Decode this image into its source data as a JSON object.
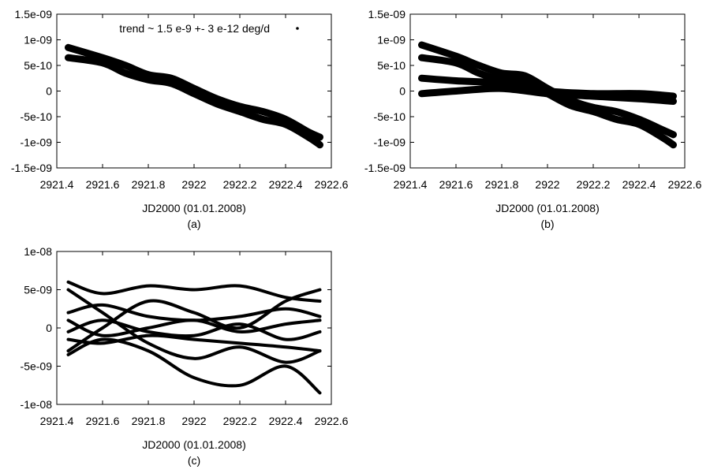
{
  "chart_data": [
    {
      "id": "a",
      "type": "line",
      "caption": "(a)",
      "xlabel": "JD2000 (01.01.2008)",
      "ylabel": "",
      "xlim": [
        2921.4,
        2922.6
      ],
      "ylim": [
        -1.5e-09,
        1.5e-09
      ],
      "xticks": [
        2921.4,
        2921.6,
        2921.8,
        2922,
        2922.2,
        2922.4,
        2922.6
      ],
      "xtick_labels": [
        "2921.4",
        "2921.6",
        "2921.8",
        "2922",
        "2922.2",
        "2922.4",
        "2922.6"
      ],
      "yticks": [
        1.5e-09,
        1e-09,
        5e-10,
        0,
        -5e-10,
        -1e-09,
        -1.5e-09
      ],
      "ytick_labels": [
        "1.5e-09",
        "1e-09",
        "5e-10",
        "0",
        "-5e-10",
        "-1e-09",
        "-1.5e-09"
      ],
      "legend": {
        "label": "trend ~ 1.5 e-9 +- 3 e-12 deg/d",
        "placement": "top"
      },
      "grid": false,
      "series": [
        {
          "color": "#000000",
          "x": [
            2921.45,
            2921.6,
            2921.7,
            2921.8,
            2921.9,
            2922.0,
            2922.1,
            2922.2,
            2922.3,
            2922.4,
            2922.5,
            2922.55
          ],
          "y": [
            8.5e-10,
            6.5e-10,
            5e-10,
            3.2e-10,
            2.5e-10,
            5e-11,
            -1.5e-10,
            -3e-10,
            -4e-10,
            -5.5e-10,
            -8e-10,
            -9e-10
          ]
        },
        {
          "color": "#000000",
          "x": [
            2921.45,
            2921.6,
            2921.7,
            2921.8,
            2921.9,
            2922.0,
            2922.1,
            2922.2,
            2922.3,
            2922.4,
            2922.5,
            2922.55
          ],
          "y": [
            6.5e-10,
            5.5e-10,
            3.5e-10,
            2.2e-10,
            1.5e-10,
            -5e-11,
            -2.5e-10,
            -4e-10,
            -5.5e-10,
            -6.5e-10,
            -9e-10,
            -1.05e-09
          ]
        }
      ]
    },
    {
      "id": "b",
      "type": "line",
      "caption": "(b)",
      "xlabel": "JD2000 (01.01.2008)",
      "ylabel": "",
      "xlim": [
        2921.4,
        2922.6
      ],
      "ylim": [
        -1.5e-09,
        1.5e-09
      ],
      "xticks": [
        2921.4,
        2921.6,
        2921.8,
        2922,
        2922.2,
        2922.4,
        2922.6
      ],
      "xtick_labels": [
        "2921.4",
        "2921.6",
        "2921.8",
        "2922",
        "2922.2",
        "2922.4",
        "2922.6"
      ],
      "yticks": [
        1.5e-09,
        1e-09,
        5e-10,
        0,
        -5e-10,
        -1e-09,
        -1.5e-09
      ],
      "ytick_labels": [
        "1.5e-09",
        "1e-09",
        "5e-10",
        "0",
        "-5e-10",
        "-1e-09",
        "-1.5e-09"
      ],
      "grid": false,
      "series": [
        {
          "color": "#000000",
          "x": [
            2921.45,
            2921.6,
            2921.7,
            2921.8,
            2921.9,
            2922.0,
            2922.1,
            2922.2,
            2922.3,
            2922.4,
            2922.5,
            2922.55
          ],
          "y": [
            9e-10,
            6.8e-10,
            5e-10,
            3.5e-10,
            3e-10,
            5e-11,
            -1.8e-10,
            -3.2e-10,
            -4e-10,
            -5.5e-10,
            -7.5e-10,
            -8.5e-10
          ]
        },
        {
          "color": "#000000",
          "x": [
            2921.45,
            2921.6,
            2921.7,
            2921.8,
            2921.9,
            2922.0,
            2922.1,
            2922.2,
            2922.3,
            2922.4,
            2922.5,
            2922.55
          ],
          "y": [
            6.5e-10,
            5.5e-10,
            3.5e-10,
            2.2e-10,
            1.8e-10,
            -5e-11,
            -2.8e-10,
            -4e-10,
            -5.5e-10,
            -6.5e-10,
            -9e-10,
            -1.05e-09
          ]
        },
        {
          "color": "#000000",
          "x": [
            2921.45,
            2921.6,
            2921.8,
            2922.0,
            2922.2,
            2922.4,
            2922.55
          ],
          "y": [
            2.5e-10,
            2e-10,
            1.5e-10,
            0,
            -5e-11,
            -5e-11,
            -1e-10
          ]
        },
        {
          "color": "#000000",
          "x": [
            2921.45,
            2921.6,
            2921.8,
            2922.0,
            2922.2,
            2922.4,
            2922.55
          ],
          "y": [
            -5e-11,
            0,
            5e-11,
            -5e-11,
            -1e-10,
            -1.5e-10,
            -2e-10
          ]
        }
      ]
    },
    {
      "id": "c",
      "type": "line",
      "caption": "(c)",
      "xlabel": "JD2000 (01.01.2008)",
      "ylabel": "",
      "xlim": [
        2921.4,
        2922.6
      ],
      "ylim": [
        -1e-08,
        1e-08
      ],
      "xticks": [
        2921.4,
        2921.6,
        2921.8,
        2922,
        2922.2,
        2922.4,
        2922.6
      ],
      "xtick_labels": [
        "2921.4",
        "2921.6",
        "2921.8",
        "2922",
        "2922.2",
        "2922.4",
        "2922.6"
      ],
      "yticks": [
        1e-08,
        5e-09,
        0,
        -5e-09,
        -1e-08
      ],
      "ytick_labels": [
        "1e-08",
        "5e-09",
        "0",
        "-5e-09",
        "-1e-08"
      ],
      "grid": false,
      "series": [
        {
          "color": "#000000",
          "x": [
            2921.45,
            2921.6,
            2921.8,
            2922.0,
            2922.2,
            2922.4,
            2922.55
          ],
          "y": [
            6e-09,
            4.5e-09,
            5.5e-09,
            5e-09,
            5.5e-09,
            4e-09,
            3.5e-09
          ]
        },
        {
          "color": "#000000",
          "x": [
            2921.45,
            2921.6,
            2921.8,
            2922.0,
            2922.2,
            2922.4,
            2922.55
          ],
          "y": [
            -3.5e-09,
            -1.5e-09,
            -3e-09,
            -6.5e-09,
            -7.5e-09,
            -5e-09,
            -8.5e-09
          ]
        },
        {
          "color": "#000000",
          "x": [
            2921.45,
            2921.6,
            2921.8,
            2922.0,
            2922.2,
            2922.4,
            2922.55
          ],
          "y": [
            2e-09,
            3e-09,
            1.5e-09,
            1e-09,
            1.5e-09,
            2.5e-09,
            1.5e-09
          ]
        },
        {
          "color": "#000000",
          "x": [
            2921.45,
            2921.6,
            2921.8,
            2922.0,
            2922.2,
            2922.4,
            2922.55
          ],
          "y": [
            -1.5e-09,
            -2e-09,
            -1e-09,
            -1.5e-09,
            -2e-09,
            -2.5e-09,
            -3e-09
          ]
        },
        {
          "color": "#000000",
          "x": [
            2921.45,
            2921.6,
            2921.8,
            2922.0,
            2922.2,
            2922.4,
            2922.55
          ],
          "y": [
            5e-09,
            2e-09,
            -2e-09,
            -4e-09,
            -2.5e-09,
            -4.5e-09,
            -3e-09
          ]
        },
        {
          "color": "#000000",
          "x": [
            2921.45,
            2921.6,
            2921.8,
            2922.0,
            2922.2,
            2922.4,
            2922.55
          ],
          "y": [
            -3e-09,
            0,
            3.5e-09,
            2e-09,
            0,
            3.5e-09,
            5e-09
          ]
        },
        {
          "color": "#000000",
          "x": [
            2921.45,
            2921.6,
            2921.8,
            2922.0,
            2922.2,
            2922.4,
            2922.55
          ],
          "y": [
            1e-09,
            -1e-09,
            0,
            1e-09,
            -5e-10,
            5e-10,
            1e-09
          ]
        },
        {
          "color": "#000000",
          "x": [
            2921.45,
            2921.6,
            2921.8,
            2922.0,
            2922.2,
            2922.4,
            2922.55
          ],
          "y": [
            -5e-10,
            1e-09,
            -5e-10,
            -1e-09,
            5e-10,
            -1.5e-09,
            -5e-10
          ]
        }
      ]
    }
  ]
}
